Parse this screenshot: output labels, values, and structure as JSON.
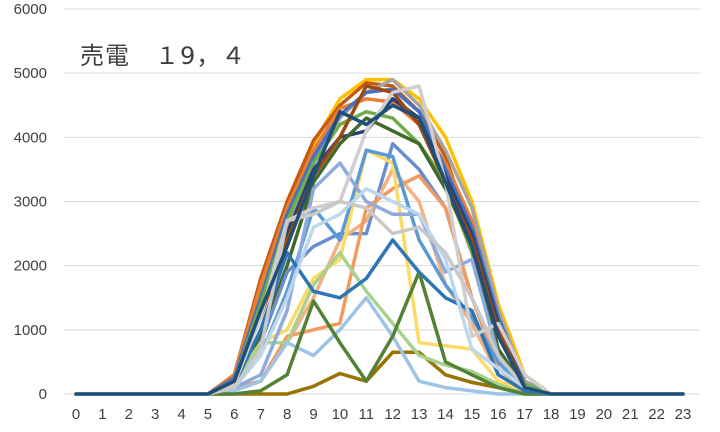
{
  "chart_data": {
    "type": "line",
    "title": "売電　１9，４",
    "xlabel": "",
    "ylabel": "",
    "x": [
      0,
      1,
      2,
      3,
      4,
      5,
      6,
      7,
      8,
      9,
      10,
      11,
      12,
      13,
      14,
      15,
      16,
      17,
      18,
      19,
      20,
      21,
      22,
      23
    ],
    "x_tick_labels": [
      "0",
      "1",
      "2",
      "3",
      "4",
      "5",
      "6",
      "7",
      "8",
      "9",
      "10",
      "11",
      "12",
      "13",
      "14",
      "15",
      "16",
      "17",
      "18",
      "19",
      "20",
      "21",
      "22",
      "23"
    ],
    "ylim": [
      0,
      6000
    ],
    "y_tick_labels": [
      "0",
      "1000",
      "2000",
      "3000",
      "4000",
      "5000",
      "6000"
    ],
    "grid": true,
    "legend": "none",
    "series": [
      {
        "color": "#FFC000",
        "values": [
          0,
          0,
          0,
          0,
          0,
          0,
          200,
          1600,
          2900,
          3900,
          4600,
          4900,
          4900,
          4600,
          4000,
          3000,
          1400,
          300,
          0,
          0,
          0,
          0,
          0,
          0
        ]
      },
      {
        "color": "#C55A11",
        "values": [
          0,
          0,
          0,
          0,
          0,
          0,
          300,
          1800,
          3000,
          3950,
          4500,
          4850,
          4800,
          4400,
          3700,
          2500,
          1000,
          200,
          0,
          0,
          0,
          0,
          0,
          0
        ]
      },
      {
        "color": "#ED7D31",
        "values": [
          0,
          0,
          0,
          0,
          0,
          0,
          300,
          1700,
          2900,
          3800,
          4450,
          4600,
          4550,
          4200,
          3600,
          2700,
          1200,
          200,
          0,
          0,
          0,
          0,
          0,
          0
        ]
      },
      {
        "color": "#A5A5A5",
        "values": [
          0,
          0,
          0,
          0,
          0,
          0,
          200,
          1300,
          2600,
          3600,
          4300,
          4700,
          4900,
          4500,
          3800,
          2900,
          1300,
          200,
          0,
          0,
          0,
          0,
          0,
          0
        ]
      },
      {
        "color": "#4472C4",
        "values": [
          0,
          0,
          0,
          0,
          0,
          0,
          250,
          1500,
          2800,
          3700,
          4350,
          4700,
          4750,
          4400,
          3500,
          2600,
          1200,
          150,
          0,
          0,
          0,
          0,
          0,
          0
        ]
      },
      {
        "color": "#70AD47",
        "values": [
          0,
          0,
          0,
          0,
          0,
          0,
          200,
          1400,
          2700,
          3600,
          4200,
          4400,
          4300,
          3900,
          3300,
          2200,
          900,
          150,
          0,
          0,
          0,
          0,
          0,
          0
        ]
      },
      {
        "color": "#264478",
        "values": [
          0,
          0,
          0,
          0,
          0,
          0,
          200,
          1200,
          2500,
          3500,
          4000,
          4100,
          4600,
          4300,
          3400,
          2500,
          1100,
          100,
          0,
          0,
          0,
          0,
          0,
          0
        ]
      },
      {
        "color": "#9E480E",
        "values": [
          0,
          0,
          0,
          0,
          0,
          0,
          200,
          1200,
          2400,
          3400,
          4000,
          4800,
          4700,
          4200,
          3300,
          2400,
          1000,
          100,
          0,
          0,
          0,
          0,
          0,
          0
        ]
      },
      {
        "color": "#43682B",
        "values": [
          0,
          0,
          0,
          0,
          0,
          0,
          150,
          900,
          2000,
          3300,
          3900,
          4300,
          4100,
          3900,
          3200,
          2300,
          700,
          100,
          0,
          0,
          0,
          0,
          0,
          0
        ]
      },
      {
        "color": "#997300",
        "values": [
          0,
          0,
          0,
          0,
          0,
          0,
          0,
          0,
          0,
          120,
          320,
          200,
          650,
          650,
          300,
          180,
          100,
          0,
          0,
          0,
          0,
          0,
          0,
          0
        ]
      },
      {
        "color": "#698ED0",
        "values": [
          0,
          0,
          0,
          0,
          0,
          0,
          150,
          800,
          1900,
          2300,
          2500,
          2500,
          3900,
          3500,
          2900,
          1500,
          600,
          100,
          0,
          0,
          0,
          0,
          0,
          0
        ]
      },
      {
        "color": "#F4B183",
        "values": [
          0,
          0,
          0,
          0,
          0,
          0,
          100,
          200,
          800,
          1500,
          2400,
          2700,
          3500,
          3000,
          1700,
          1100,
          300,
          50,
          0,
          0,
          0,
          0,
          0,
          0
        ]
      },
      {
        "color": "#F19B5F",
        "values": [
          0,
          0,
          0,
          0,
          0,
          0,
          100,
          200,
          900,
          1000,
          1100,
          2900,
          3200,
          3400,
          2900,
          1500,
          400,
          50,
          0,
          0,
          0,
          0,
          0,
          0
        ]
      },
      {
        "color": "#FFD966",
        "values": [
          0,
          0,
          0,
          0,
          0,
          0,
          200,
          800,
          1000,
          1800,
          2100,
          3800,
          3600,
          800,
          750,
          700,
          200,
          50,
          0,
          0,
          0,
          0,
          0,
          0
        ]
      },
      {
        "color": "#A9D18E",
        "values": [
          0,
          0,
          0,
          0,
          0,
          0,
          150,
          800,
          800,
          1700,
          2200,
          1600,
          1100,
          600,
          450,
          350,
          150,
          0,
          0,
          0,
          0,
          0,
          0,
          0
        ]
      },
      {
        "color": "#9DC3E6",
        "values": [
          0,
          0,
          0,
          0,
          0,
          0,
          50,
          200,
          800,
          600,
          1000,
          1500,
          900,
          200,
          100,
          50,
          0,
          0,
          0,
          0,
          0,
          0,
          0,
          0
        ]
      },
      {
        "color": "#548235",
        "values": [
          0,
          0,
          0,
          0,
          0,
          0,
          0,
          50,
          300,
          1450,
          800,
          200,
          900,
          1900,
          500,
          300,
          100,
          0,
          0,
          0,
          0,
          0,
          0,
          0
        ]
      },
      {
        "color": "#5B9BD5",
        "values": [
          0,
          0,
          0,
          0,
          0,
          0,
          100,
          600,
          1600,
          2900,
          2400,
          3800,
          3700,
          2400,
          1700,
          1200,
          500,
          50,
          0,
          0,
          0,
          0,
          0,
          0
        ]
      },
      {
        "color": "#8FAADC",
        "values": [
          0,
          0,
          0,
          0,
          0,
          0,
          100,
          300,
          1300,
          3200,
          3600,
          3000,
          2800,
          2800,
          1900,
          2100,
          600,
          100,
          0,
          0,
          0,
          0,
          0,
          0
        ]
      },
      {
        "color": "#2E75B6",
        "values": [
          0,
          0,
          0,
          0,
          0,
          0,
          150,
          1000,
          2200,
          1600,
          1500,
          1800,
          2400,
          1900,
          1500,
          1300,
          300,
          50,
          0,
          0,
          0,
          0,
          0,
          0
        ]
      },
      {
        "color": "#D0CECE",
        "values": [
          0,
          0,
          0,
          0,
          0,
          0,
          150,
          1200,
          2700,
          2900,
          3000,
          4100,
          4700,
          4800,
          3300,
          900,
          1100,
          300,
          0,
          0,
          0,
          0,
          0,
          0
        ]
      },
      {
        "color": "#BDD7EE",
        "values": [
          0,
          0,
          0,
          0,
          0,
          0,
          100,
          600,
          1500,
          2600,
          2800,
          3200,
          3000,
          2800,
          2100,
          700,
          400,
          100,
          0,
          0,
          0,
          0,
          0,
          0
        ]
      },
      {
        "color": "#C9C9C9",
        "values": [
          0,
          0,
          0,
          0,
          0,
          0,
          100,
          700,
          2700,
          2800,
          3000,
          2900,
          2500,
          2600,
          2200,
          1500,
          600,
          100,
          0,
          0,
          0,
          0,
          0,
          0
        ]
      },
      {
        "color": "#1F4E79",
        "values": [
          0,
          0,
          0,
          0,
          0,
          0,
          200,
          1300,
          2300,
          3400,
          4400,
          4200,
          4500,
          4300,
          3300,
          2300,
          900,
          100,
          0,
          0,
          0,
          0,
          0,
          0
        ]
      }
    ]
  }
}
